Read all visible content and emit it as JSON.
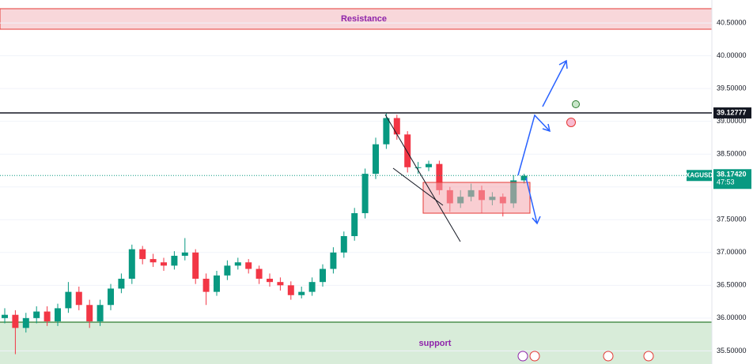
{
  "chart_data": {
    "type": "candlestick",
    "symbol": "XAGUSD",
    "open": [
      36.0,
      36.05,
      35.85,
      36.0,
      36.1,
      35.95,
      36.15,
      36.4,
      36.2,
      35.95,
      36.2,
      36.45,
      36.6,
      37.05,
      36.9,
      36.85,
      36.8,
      36.95,
      37.0,
      36.6,
      36.4,
      36.65,
      36.8,
      36.85,
      36.75,
      36.6,
      36.55,
      36.5,
      36.35,
      36.4,
      36.55,
      36.75,
      37.0,
      37.25,
      37.6,
      38.2,
      38.65,
      39.05,
      38.8,
      38.3,
      38.3,
      38.35,
      37.95,
      37.75,
      37.85,
      37.95,
      37.8,
      37.85,
      37.75,
      38.1
    ],
    "high": [
      36.15,
      36.12,
      36.08,
      36.18,
      36.18,
      36.22,
      36.55,
      36.48,
      36.28,
      36.28,
      36.52,
      36.68,
      37.12,
      37.1,
      36.98,
      36.92,
      37.02,
      37.22,
      37.05,
      36.68,
      36.72,
      36.88,
      36.92,
      36.9,
      36.8,
      36.68,
      36.62,
      36.56,
      36.48,
      36.62,
      36.82,
      37.08,
      37.32,
      37.68,
      38.28,
      38.75,
      39.12,
      39.1,
      38.85,
      38.38,
      38.4,
      38.4,
      38.0,
      37.95,
      38.05,
      38.02,
      37.92,
      37.9,
      38.18,
      38.2
    ],
    "low": [
      35.92,
      35.45,
      35.78,
      35.92,
      35.88,
      35.88,
      36.08,
      36.12,
      35.85,
      35.88,
      36.12,
      36.38,
      36.52,
      36.82,
      36.78,
      36.72,
      36.74,
      36.88,
      36.52,
      36.2,
      36.34,
      36.58,
      36.74,
      36.68,
      36.52,
      36.48,
      36.42,
      36.28,
      36.3,
      36.34,
      36.48,
      36.68,
      36.92,
      37.18,
      37.52,
      38.12,
      38.58,
      38.72,
      38.22,
      38.2,
      38.24,
      37.88,
      37.62,
      37.68,
      37.78,
      37.6,
      37.72,
      37.55,
      37.68,
      38.05
    ],
    "close": [
      36.05,
      35.85,
      36.0,
      36.1,
      35.95,
      36.15,
      36.4,
      36.2,
      35.95,
      36.2,
      36.45,
      36.6,
      37.05,
      36.9,
      36.85,
      36.8,
      36.95,
      37.0,
      36.6,
      36.4,
      36.65,
      36.8,
      36.85,
      36.75,
      36.6,
      36.55,
      36.5,
      36.35,
      36.4,
      36.55,
      36.75,
      37.0,
      37.25,
      37.6,
      38.2,
      38.65,
      39.05,
      38.8,
      38.3,
      38.3,
      38.35,
      37.95,
      37.75,
      37.85,
      37.95,
      37.8,
      37.85,
      37.75,
      38.1,
      38.17
    ],
    "up_color": "#089981",
    "down_color": "#f23645",
    "ylim": [
      35.3,
      40.85
    ],
    "yticks": [
      {
        "value": 35.5,
        "label": "35.50000"
      },
      {
        "value": 36.0,
        "label": "36.00000"
      },
      {
        "value": 36.5,
        "label": "36.50000"
      },
      {
        "value": 37.0,
        "label": "37.00000"
      },
      {
        "value": 37.5,
        "label": "37.50000"
      },
      {
        "value": 38.0,
        "label": "38.00000"
      },
      {
        "value": 38.5,
        "label": "38.50000"
      },
      {
        "value": 39.0,
        "label": "39.00000"
      },
      {
        "value": 39.5,
        "label": "39.50000"
      },
      {
        "value": 40.0,
        "label": "40.00000"
      },
      {
        "value": 40.5,
        "label": "40.50000"
      }
    ],
    "level_line": 39.12777,
    "last_price": {
      "value": 38.1742,
      "label": "38.17420"
    },
    "countdown": "47:53",
    "resistance_label": "Resistance",
    "support_label": "support"
  }
}
